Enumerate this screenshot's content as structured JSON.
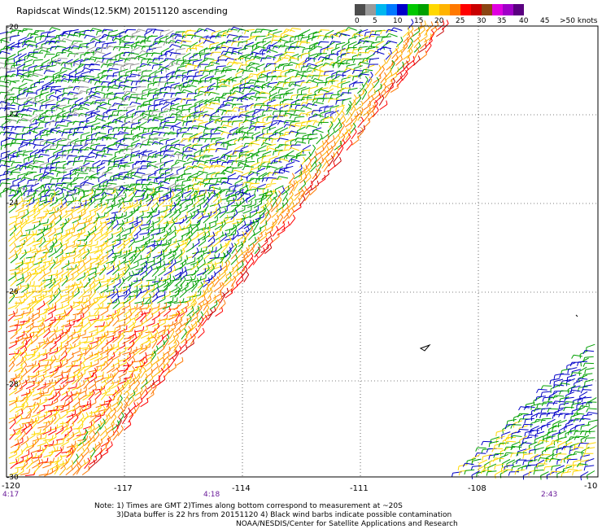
{
  "title": "Rapidscat Winds(12.5KM) 20151120 ascending",
  "legend": {
    "colors": [
      "#4d4d4d",
      "#9a9a9a",
      "#00b7ef",
      "#0078ff",
      "#0000c8",
      "#00c800",
      "#00a000",
      "#ffd800",
      "#ffb400",
      "#ff7800",
      "#ff0000",
      "#c80000",
      "#8b4513",
      "#e000e0",
      "#a000c8",
      "#5a0080"
    ],
    "labels": [
      "0",
      "5",
      "10",
      "15",
      "20",
      "25",
      "30",
      "35",
      "40",
      "45",
      ">50 knots"
    ]
  },
  "map": {
    "lat_labels": [
      "-20",
      "-22",
      "-24",
      "-26",
      "-28",
      "-30"
    ],
    "lon_labels": [
      "-120",
      "-117",
      "-114",
      "-111",
      "-108",
      "-10"
    ],
    "time_labels": [
      "4:17",
      "4:18",
      "2:43"
    ],
    "grid": "dotted"
  },
  "notes": [
    "Note: 1) Times are GMT 2)Times along bottom correspond to measurement at ~20S",
    "3)Data buffer is 22 hrs from 20151120 4) Black wind barbs indicate possible contamination",
    "NOAA/NESDIS/Center for Satellite Applications and Research"
  ]
}
